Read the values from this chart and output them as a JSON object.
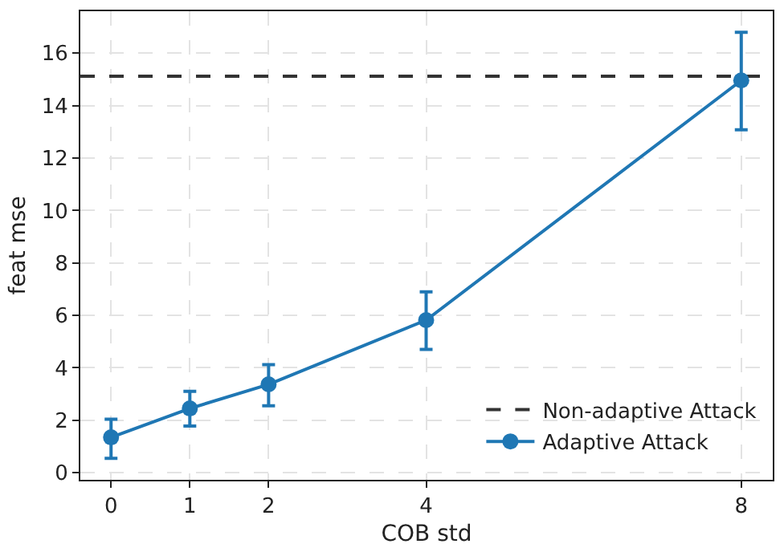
{
  "chart_data": {
    "type": "line",
    "xlabel": "COB std",
    "ylabel": "feat mse",
    "x": [
      0,
      1,
      2,
      4,
      8
    ],
    "series": [
      {
        "name": "Adaptive Attack",
        "color": "#1f77b4",
        "values": [
          1.35,
          2.45,
          3.37,
          5.82,
          14.96
        ],
        "errors": [
          [
            0.55,
            2.04
          ],
          [
            1.78,
            3.1
          ],
          [
            2.55,
            4.12
          ],
          [
            4.7,
            6.9
          ],
          [
            13.08,
            16.8
          ]
        ]
      }
    ],
    "ref_lines": [
      {
        "axis": "y",
        "value": 15.12,
        "label": "Non-adaptive Attack",
        "color": "#333333",
        "line_style": "dashed"
      }
    ],
    "xlim": [
      -0.39,
      8.4
    ],
    "xticks": [
      0,
      1,
      2,
      4,
      8
    ],
    "ylim": [
      -0.27,
      17.6
    ],
    "yticks": [
      0,
      2,
      4,
      6,
      8,
      10,
      12,
      14,
      16
    ],
    "grid": true,
    "legend": "bottom right",
    "marker": "circle",
    "line_style": "solid"
  }
}
